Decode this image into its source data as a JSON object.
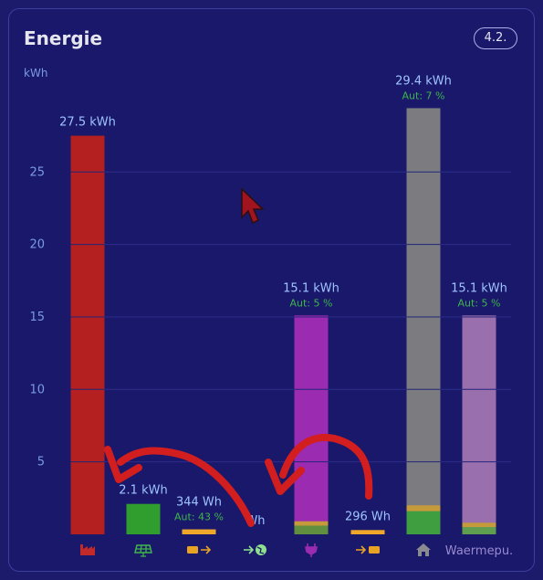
{
  "card": {
    "title": "Energie",
    "date_badge": "4.2.",
    "unit_label": "kWh"
  },
  "colors": {
    "background": "#19186a",
    "grid": "#2c2d8a",
    "label": "#9fc3ff",
    "autarky": "#3fb54a",
    "arrow": "#d21e1e"
  },
  "chart_data": {
    "type": "bar",
    "ylim": [
      0,
      28
    ],
    "yticks": [
      5,
      10,
      15,
      20,
      25
    ],
    "grid": true,
    "bars": [
      {
        "key": "grid_import",
        "value": 27.5,
        "label": "27.5 kWh",
        "color": "#b3201f",
        "icon": "factory-icon",
        "icon_color": "#c22a2a"
      },
      {
        "key": "solar",
        "value": 2.1,
        "label": "2.1 kWh",
        "color": "#2f9e2f",
        "icon": "solar-panel-icon",
        "icon_color": "#3fb54a"
      },
      {
        "key": "battery_discharge",
        "value": 0.344,
        "label": "344 Wh",
        "autarky": "Aut: 43 %",
        "color": "#f0a82a",
        "icon": "battery-out-icon",
        "icon_color": "#e8a324"
      },
      {
        "key": "grid_export",
        "value": 0.0,
        "label": "Wh",
        "color": "#8fd48f",
        "icon": "grid-export-icon",
        "icon_color": "#8fe08f"
      },
      {
        "key": "consumer",
        "value": 15.1,
        "label": "15.1 kWh",
        "autarky": "Aut: 5 %",
        "color": "#9b2bb0",
        "icon": "plug-icon",
        "icon_color": "#9b2bb0",
        "bottom": [
          {
            "value": 0.6,
            "color": "#5f8f3f"
          },
          {
            "value": 0.3,
            "color": "#c59a3a"
          }
        ]
      },
      {
        "key": "battery_charge",
        "value": 0.296,
        "label": "296 Wh",
        "color": "#f0a82a",
        "icon": "battery-in-icon",
        "icon_color": "#e8a324"
      },
      {
        "key": "home",
        "value": 29.4,
        "label": "29.4 kWh",
        "autarky": "Aut: 7 %",
        "color": "#7c7c80",
        "icon": "home-icon",
        "icon_color": "#8a8a90",
        "bottom": [
          {
            "value": 1.6,
            "color": "#3f9e3f"
          },
          {
            "value": 0.4,
            "color": "#c59a3a"
          }
        ]
      },
      {
        "key": "heatpump",
        "value": 15.1,
        "label": "15.1 kWh",
        "autarky": "Aut: 5 %",
        "color": "#9a6fae",
        "category": "Waermepu.",
        "bottom": [
          {
            "value": 0.5,
            "color": "#5f9e4f"
          },
          {
            "value": 0.3,
            "color": "#c59a3a"
          }
        ]
      }
    ]
  }
}
